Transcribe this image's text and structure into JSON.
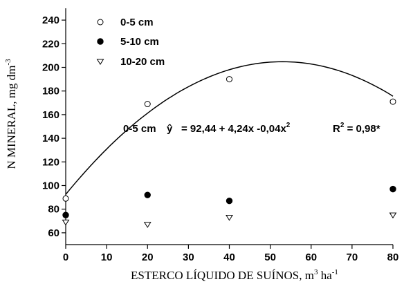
{
  "chart_data": {
    "type": "scatter",
    "xlabel": {
      "main": "ESTERCO LÍQUIDO DE SUÍNOS, m",
      "sup1": "3",
      "mid": " ha",
      "sup2": "-1"
    },
    "ylabel": {
      "main": "N MINERAL, mg dm",
      "sup": "-3"
    },
    "xlim": [
      0,
      80
    ],
    "ylim": [
      50,
      250
    ],
    "xticks": [
      0,
      10,
      20,
      30,
      40,
      50,
      60,
      70,
      80
    ],
    "yticks": [
      60,
      80,
      100,
      120,
      140,
      160,
      180,
      200,
      220,
      240
    ],
    "legend_position": "top-left",
    "series": [
      {
        "name": "0-5 cm",
        "marker": "open-circle",
        "x": [
          0,
          20,
          40,
          80
        ],
        "y": [
          89,
          169,
          190,
          171
        ]
      },
      {
        "name": "5-10 cm",
        "marker": "filled-circle",
        "x": [
          0,
          20,
          40,
          80
        ],
        "y": [
          75,
          92,
          87,
          97
        ]
      },
      {
        "name": "10-20 cm",
        "marker": "open-triangle-down",
        "x": [
          0,
          20,
          40,
          80
        ],
        "y": [
          69,
          67,
          73,
          75
        ]
      }
    ],
    "fit": {
      "series": "0-5 cm",
      "coefficients": [
        92.44,
        4.24,
        -0.04
      ],
      "equation": {
        "label": "0-5 cm",
        "yhat": "ŷ",
        "lhs": "= 92,44 + 4,24x -0,04x",
        "exp": "2",
        "r2_label": "R",
        "r2_exp": "2",
        "r2_value": " = 0,98*"
      }
    }
  }
}
